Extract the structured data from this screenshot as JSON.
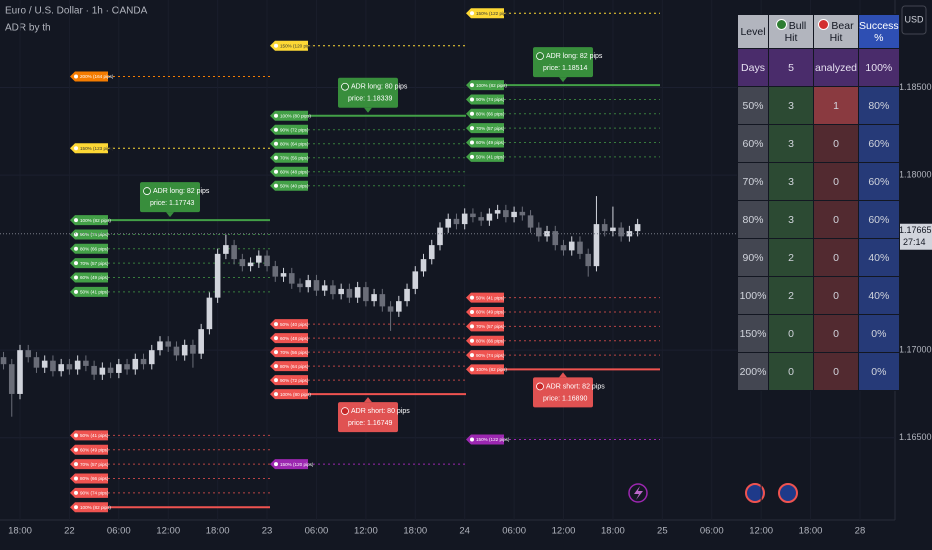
{
  "header": {
    "symbol": "Euro / U.S. Dollar · 1h · OANDA",
    "indicator": "ADR by th"
  },
  "currency_button": "USD",
  "chart_data": {
    "type": "candlestick",
    "categories": [
      null,
      null,
      "18:00",
      null,
      null,
      null,
      null,
      null,
      "22",
      null,
      null,
      null,
      null,
      null,
      "06:00",
      null,
      null,
      null,
      null,
      null,
      "12:00",
      null,
      null,
      null,
      null,
      null,
      "18:00",
      null,
      null,
      null,
      null,
      null,
      "23",
      null,
      null,
      null,
      null,
      null,
      "06:00",
      null,
      null,
      null,
      null,
      null,
      "12:00",
      null,
      null,
      null,
      null,
      null,
      "18:00",
      null,
      null,
      null,
      null,
      null,
      "24",
      null,
      null,
      null,
      null,
      null,
      "06:00",
      null,
      null,
      null,
      null,
      null,
      "12:00",
      null,
      null,
      null,
      null,
      null,
      "18:00",
      null,
      null,
      null,
      null,
      null,
      "25",
      null,
      null,
      null,
      null,
      null,
      "06:00",
      null,
      null,
      null,
      null,
      null,
      "12:00",
      null,
      null,
      null,
      null,
      null,
      "18:00",
      null,
      null,
      null,
      null,
      null,
      "28"
    ],
    "open": [
      1.1696,
      1.1692,
      1.1675,
      1.17,
      1.1696,
      1.169,
      1.1694,
      1.1688,
      1.1692,
      1.1689,
      1.1694,
      1.1691,
      1.1686,
      1.169,
      1.1687,
      1.1692,
      1.1689,
      1.1695,
      1.1692,
      1.17,
      1.1705,
      1.1702,
      1.1697,
      1.1703,
      1.1698,
      1.1712,
      1.173,
      1.1755,
      1.176,
      1.1752,
      1.1748,
      1.175,
      1.1754,
      1.1748,
      1.1742,
      1.1744,
      1.1738,
      1.1736,
      1.174,
      1.1734,
      1.1737,
      1.1732,
      1.1735,
      1.173,
      1.1736,
      1.1728,
      1.1732,
      1.1725,
      1.1722,
      1.1728,
      1.1735,
      1.1745,
      1.1752,
      1.176,
      1.177,
      1.1775,
      1.1772,
      1.1778,
      1.1776,
      1.1774,
      1.1778,
      1.178,
      1.1776,
      1.1779,
      1.1777,
      1.177,
      1.1765,
      1.1768,
      1.176,
      1.1757,
      1.1762,
      1.1755,
      1.1748,
      1.1772,
      1.1768,
      1.177,
      1.1765,
      1.1768,
      null,
      null,
      null,
      null,
      null,
      null,
      null,
      null,
      null,
      null,
      null,
      null,
      null,
      null,
      null,
      null,
      null,
      null,
      null,
      null,
      null,
      null,
      null,
      null,
      null,
      null,
      null
    ],
    "high": [
      1.1699,
      1.1695,
      1.1703,
      1.1703,
      1.1699,
      1.1697,
      1.1697,
      1.1695,
      1.1695,
      1.1697,
      1.1697,
      1.1694,
      1.1693,
      1.1693,
      1.1695,
      1.1695,
      1.1698,
      1.1698,
      1.1703,
      1.1708,
      1.1708,
      1.1705,
      1.1706,
      1.1706,
      1.1715,
      1.1733,
      1.1758,
      1.1766,
      1.1763,
      1.1755,
      1.1753,
      1.1757,
      1.1757,
      1.1751,
      1.1747,
      1.1747,
      1.1741,
      1.1743,
      1.1743,
      1.174,
      1.174,
      1.1738,
      1.1738,
      1.1739,
      1.1739,
      1.1735,
      1.1735,
      1.1728,
      1.1731,
      1.1738,
      1.1748,
      1.1755,
      1.1763,
      1.1773,
      1.1778,
      1.1778,
      1.1781,
      1.1781,
      1.1779,
      1.1781,
      1.1783,
      1.1783,
      1.1782,
      1.1782,
      1.178,
      1.1773,
      1.1771,
      1.1771,
      1.1763,
      1.1765,
      1.1765,
      1.1758,
      1.1788,
      1.1775,
      1.1782,
      1.1773,
      1.1771,
      1.1775,
      null,
      null,
      null,
      null,
      null,
      null,
      null,
      null,
      null,
      null,
      null,
      null,
      null,
      null,
      null,
      null,
      null,
      null,
      null,
      null,
      null,
      null,
      null,
      null,
      null,
      null,
      null
    ],
    "low": [
      1.1689,
      1.1662,
      1.1672,
      1.1693,
      1.1687,
      1.1687,
      1.1685,
      1.1685,
      1.1686,
      1.1686,
      1.1688,
      1.1683,
      1.1683,
      1.1684,
      1.1684,
      1.1686,
      1.1686,
      1.1689,
      1.1689,
      1.1697,
      1.1699,
      1.1694,
      1.1694,
      1.169,
      1.1695,
      1.1709,
      1.1727,
      1.1752,
      1.1749,
      1.1745,
      1.1745,
      1.1747,
      1.1745,
      1.1739,
      1.1739,
      1.1735,
      1.1733,
      1.1733,
      1.1731,
      1.1731,
      1.1729,
      1.1729,
      1.1727,
      1.1727,
      1.1725,
      1.1725,
      1.1722,
      1.1711,
      1.1719,
      1.1725,
      1.1732,
      1.1742,
      1.1749,
      1.1757,
      1.1767,
      1.1769,
      1.1769,
      1.1773,
      1.1771,
      1.1771,
      1.1775,
      1.1773,
      1.1773,
      1.1774,
      1.1767,
      1.1762,
      1.1762,
      1.1757,
      1.1754,
      1.1754,
      1.1752,
      1.1742,
      1.1745,
      1.1765,
      1.1765,
      1.1762,
      1.1762,
      1.1765,
      null,
      null,
      null,
      null,
      null,
      null,
      null,
      null,
      null,
      null,
      null,
      null,
      null,
      null,
      null,
      null,
      null,
      null,
      null,
      null,
      null,
      null,
      null,
      null,
      null,
      null,
      null
    ],
    "close": [
      1.1692,
      1.1675,
      1.17,
      1.1696,
      1.169,
      1.1694,
      1.1688,
      1.1692,
      1.1689,
      1.1694,
      1.1691,
      1.1686,
      1.169,
      1.1687,
      1.1692,
      1.1689,
      1.1695,
      1.1692,
      1.17,
      1.1705,
      1.1702,
      1.1697,
      1.1703,
      1.1698,
      1.1712,
      1.173,
      1.1755,
      1.176,
      1.1752,
      1.1748,
      1.175,
      1.1754,
      1.1748,
      1.1742,
      1.1744,
      1.1738,
      1.1736,
      1.174,
      1.1734,
      1.1737,
      1.1732,
      1.1735,
      1.173,
      1.1736,
      1.1728,
      1.1732,
      1.1725,
      1.1722,
      1.1728,
      1.1735,
      1.1745,
      1.1752,
      1.176,
      1.177,
      1.1775,
      1.1772,
      1.1778,
      1.1776,
      1.1774,
      1.1778,
      1.178,
      1.1776,
      1.1779,
      1.1777,
      1.177,
      1.1765,
      1.1768,
      1.176,
      1.1757,
      1.1762,
      1.1755,
      1.1748,
      1.1772,
      1.1768,
      1.177,
      1.1765,
      1.1768,
      1.1772,
      null,
      null,
      null,
      null,
      null,
      null,
      null,
      null,
      null,
      null,
      null,
      null,
      null,
      null,
      null,
      null,
      null,
      null,
      null,
      null,
      null,
      null,
      null,
      null,
      null,
      null,
      null
    ],
    "up_color": "#d1d4dc",
    "down_color": "#6a6d78",
    "ylim": [
      1.1603,
      1.19
    ],
    "yticks": [
      {
        "value": 1.165,
        "label": "1.16500"
      },
      {
        "value": 1.17,
        "label": "1.17000"
      },
      {
        "value": 1.18,
        "label": "1.18000"
      },
      {
        "value": 1.185,
        "label": "1.18500"
      }
    ],
    "last_price": 1.17665,
    "countdown": "27:14",
    "days": [
      {
        "long": {
          "color": "#43a047",
          "prices": [
            1.17743,
            1.17661,
            1.17579,
            1.17497,
            1.17415,
            1.17333
          ],
          "labels": [
            "100% (82 pips)",
            "90% (74 pips)",
            "80% (66 pips)",
            "70% (57 pips)",
            "60% (49 pips)",
            "50% (41 pips)"
          ],
          "tooltip": [
            "ADR long: 82 pips",
            "price: 1.17743"
          ]
        },
        "short": {
          "color": "#ef5350",
          "prices": [
            1.16513,
            1.16431,
            1.16349,
            1.16267,
            1.16185,
            1.16103
          ],
          "labels": [
            "50% (41 pips)",
            "60% (49 pips)",
            "70% (57 pips)",
            "80% (66 pips)",
            "90% (74 pips)",
            "100% (82 pips)"
          ]
        },
        "extensions": [
          {
            "color": "#f57c00",
            "price": 1.18563,
            "label": "200% (164 pips)"
          },
          {
            "color": "#fdd835",
            "price": 1.18153,
            "label": "150% (123 pips)"
          }
        ]
      },
      {
        "long": {
          "color": "#43a047",
          "prices": [
            1.18339,
            1.18259,
            1.18179,
            1.18099,
            1.18019,
            1.17939
          ],
          "labels": [
            "100% (80 pips)",
            "90% (72 pips)",
            "80% (64 pips)",
            "70% (56 pips)",
            "60% (48 pips)",
            "50% (40 pips)"
          ],
          "tooltip": [
            "ADR long: 80 pips",
            "price: 1.18339"
          ]
        },
        "short": {
          "color": "#ef5350",
          "prices": [
            1.17149,
            1.17069,
            1.16989,
            1.16909,
            1.16829,
            1.16749
          ],
          "labels": [
            "50% (40 pips)",
            "60% (48 pips)",
            "70% (56 pips)",
            "80% (64 pips)",
            "90% (72 pips)",
            "100% (80 pips)"
          ],
          "tooltip": [
            "ADR short: 80 pips",
            "price: 1.16749"
          ]
        },
        "extensions": [
          {
            "color": "#fdd835",
            "price": 1.18739,
            "label": "150% (120 pips)"
          },
          {
            "color": "#9c27b0",
            "price": 1.16349,
            "label": "150% (120 pips)"
          }
        ]
      },
      {
        "long": {
          "color": "#43a047",
          "prices": [
            1.18514,
            1.18432,
            1.1835,
            1.18268,
            1.18186,
            1.18104
          ],
          "labels": [
            "100% (82 pips)",
            "90% (74 pips)",
            "80% (66 pips)",
            "70% (57 pips)",
            "60% (49 pips)",
            "50% (41 pips)"
          ],
          "tooltip": [
            "ADR long: 82 pips",
            "price: 1.18514"
          ]
        },
        "short": {
          "color": "#ef5350",
          "prices": [
            1.173,
            1.17218,
            1.17136,
            1.17054,
            1.16972,
            1.1689
          ],
          "labels": [
            "50% (41 pips)",
            "60% (49 pips)",
            "70% (57 pips)",
            "80% (66 pips)",
            "90% (74 pips)",
            "100% (82 pips)"
          ],
          "tooltip": [
            "ADR short: 82 pips",
            "price: 1.16890"
          ]
        },
        "extensions": [
          {
            "color": "#fdd835",
            "price": 1.18924,
            "label": "150% (122 pips)"
          },
          {
            "color": "#9c27b0",
            "price": 1.1649,
            "label": "150% (122 pips)"
          }
        ]
      }
    ]
  },
  "table": {
    "header": [
      "Level",
      "Bull Hit",
      "Bear Hit",
      "Success %"
    ],
    "rows": [
      [
        "Days",
        "5",
        "analyzed",
        "100%"
      ],
      [
        "50%",
        "3",
        "1",
        "80%"
      ],
      [
        "60%",
        "3",
        "0",
        "60%"
      ],
      [
        "70%",
        "3",
        "0",
        "60%"
      ],
      [
        "80%",
        "3",
        "0",
        "60%"
      ],
      [
        "90%",
        "2",
        "0",
        "40%"
      ],
      [
        "100%",
        "2",
        "0",
        "40%"
      ],
      [
        "150%",
        "0",
        "0",
        "0%"
      ],
      [
        "200%",
        "0",
        "0",
        "0%"
      ]
    ]
  }
}
